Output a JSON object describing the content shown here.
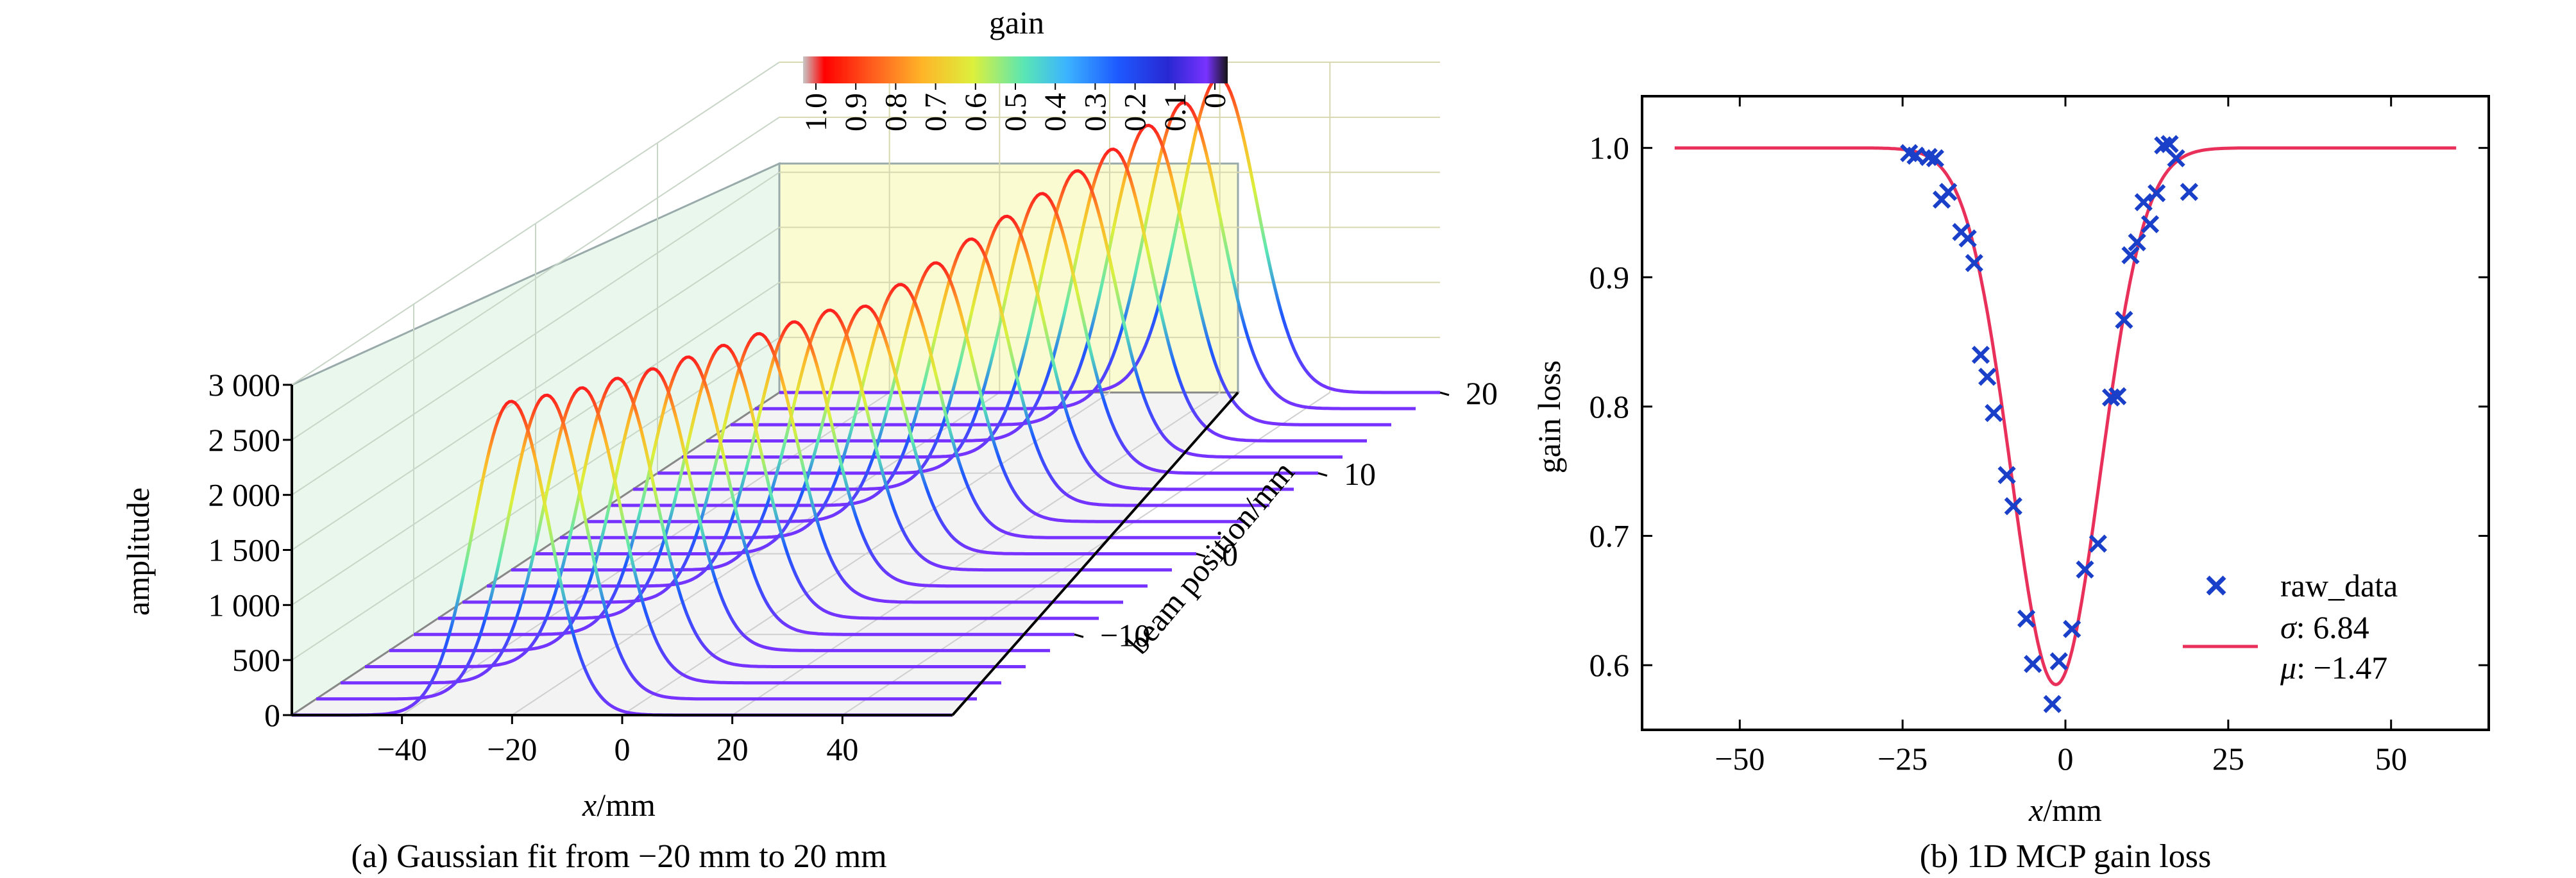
{
  "chart_data": [
    {
      "type": "line",
      "panel": "(a)",
      "caption": "(a) Gaussian fit from −20 mm to 20 mm",
      "xlabel_italic": "x",
      "xlabel_unit": "/mm",
      "ylabel": "amplitude",
      "zlabel": "beam position/mm",
      "xticks": [
        "−40",
        "−20",
        "0",
        "20",
        "40"
      ],
      "xlim": [
        -60,
        60
      ],
      "yticks": [
        "0",
        "500",
        "1 000",
        "1 500",
        "2 000",
        "2 500",
        "3 000"
      ],
      "ylim": [
        0,
        3000
      ],
      "zticks": [
        "−10",
        "0",
        "10",
        "20"
      ],
      "zlim": [
        -20,
        20
      ],
      "colorbar": {
        "title": "gain",
        "ticks": [
          "1.0",
          "0.9",
          "0.8",
          "0.7",
          "0.6",
          "0.5",
          "0.4",
          "0.3",
          "0.2",
          "0.1",
          "0"
        ],
        "colors": [
          "#c8c8c8",
          "#ff0000",
          "#ff5a1e",
          "#ffb428",
          "#dcf03c",
          "#5ae6b4",
          "#3cb4ff",
          "#1e5aff",
          "#2828d2",
          "#7832ff",
          "#141414"
        ]
      },
      "series_description": "Gaussian curves, one per beam position",
      "gaussian_sigma": 6.84,
      "gaussian_mu_offset": -1.47,
      "beam_positions": [
        -20,
        -18,
        -16,
        -14,
        -12,
        -10,
        -8,
        -6,
        -4,
        -2,
        0,
        2,
        4,
        6,
        8,
        10,
        12,
        14,
        16,
        18,
        20
      ],
      "peak_amplitudes": [
        2850,
        2760,
        2680,
        2620,
        2560,
        2520,
        2480,
        2440,
        2400,
        2360,
        2250,
        2300,
        2350,
        2420,
        2480,
        2540,
        2600,
        2650,
        2720,
        2780,
        2860
      ]
    },
    {
      "type": "scatter",
      "panel": "(b)",
      "caption": "(b) 1D MCP gain loss",
      "xlabel_italic": "x",
      "xlabel_unit": "/mm",
      "ylabel": "gain loss",
      "xlim": [
        -65,
        65
      ],
      "ylim": [
        0.55,
        1.04
      ],
      "xticks": [
        "−50",
        "−25",
        "0",
        "25",
        "50"
      ],
      "yticks": [
        "0.6",
        "0.7",
        "0.8",
        "0.9",
        "1.0"
      ],
      "legend": {
        "raw_label": "raw_data",
        "sigma_sym": "σ",
        "sigma_val": ": 6.84",
        "mu_sym": "μ",
        "mu_val": ": −1.47"
      },
      "fit": {
        "sigma": 6.84,
        "mu": -1.47,
        "depth": 0.415,
        "baseline": 1.0,
        "x_range": [
          -60,
          60
        ],
        "color": "#e8305a"
      },
      "raw_color": "#1a3fc8",
      "raw_data": [
        [
          -24,
          0.996
        ],
        [
          -23,
          0.994
        ],
        [
          -21,
          0.993
        ],
        [
          -20,
          0.992
        ],
        [
          -19,
          0.96
        ],
        [
          -18,
          0.966
        ],
        [
          -16,
          0.935
        ],
        [
          -15,
          0.93
        ],
        [
          -14,
          0.911
        ],
        [
          -13,
          0.84
        ],
        [
          -12,
          0.823
        ],
        [
          -11,
          0.795
        ],
        [
          -9,
          0.747
        ],
        [
          -8,
          0.723
        ],
        [
          -6,
          0.636
        ],
        [
          -5,
          0.601
        ],
        [
          -2,
          0.57
        ],
        [
          -1,
          0.603
        ],
        [
          1,
          0.628
        ],
        [
          3,
          0.674
        ],
        [
          5,
          0.694
        ],
        [
          7,
          0.807
        ],
        [
          8,
          0.808
        ],
        [
          9,
          0.867
        ],
        [
          10,
          0.917
        ],
        [
          11,
          0.927
        ],
        [
          12,
          0.958
        ],
        [
          13,
          0.941
        ],
        [
          14,
          0.965
        ],
        [
          15,
          1.002
        ],
        [
          16,
          1.003
        ],
        [
          17,
          0.992
        ],
        [
          19,
          0.966
        ]
      ]
    }
  ]
}
